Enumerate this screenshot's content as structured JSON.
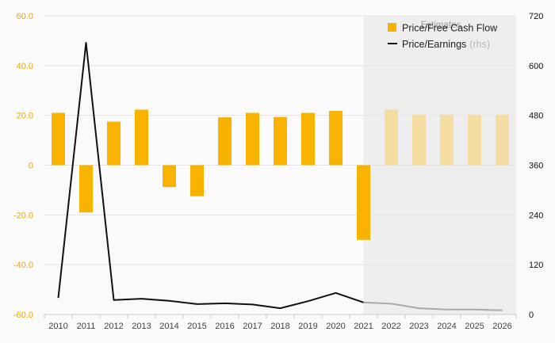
{
  "chart_data": {
    "type": "bar",
    "categories": [
      "2010",
      "2011",
      "2012",
      "2013",
      "2014",
      "2015",
      "2016",
      "2017",
      "2018",
      "2019",
      "2020",
      "2021",
      "2022",
      "2023",
      "2024",
      "2025",
      "2026"
    ],
    "series": [
      {
        "name": "Price/Free Cash Flow",
        "axis": "left",
        "type": "bar",
        "values": [
          21.0,
          -19.0,
          17.5,
          22.3,
          -8.8,
          -12.5,
          19.2,
          21.0,
          19.4,
          21.0,
          21.8,
          -30.0,
          22.3,
          20.3,
          20.3,
          20.3,
          20.3
        ],
        "estimated": [
          false,
          false,
          false,
          false,
          false,
          false,
          false,
          false,
          false,
          false,
          false,
          false,
          true,
          true,
          true,
          true,
          true
        ]
      },
      {
        "name": "Price/Earnings",
        "axis": "right",
        "type": "line",
        "values": [
          40,
          655,
          35,
          38,
          33,
          25,
          27,
          24,
          15,
          32,
          52,
          29,
          26,
          15,
          12,
          12,
          10
        ],
        "estimated": [
          false,
          false,
          false,
          false,
          false,
          false,
          false,
          false,
          false,
          false,
          false,
          false,
          true,
          true,
          true,
          true,
          true
        ]
      }
    ],
    "left_axis": {
      "ylim": [
        -60,
        60
      ],
      "ticks": [
        "60.0",
        "40.0",
        "20.0",
        "0",
        "-20.0",
        "-40.0",
        "-60.0"
      ]
    },
    "right_axis": {
      "ylim": [
        0,
        720
      ],
      "ticks": [
        "720",
        "600",
        "480",
        "360",
        "240",
        "120",
        "0"
      ]
    },
    "estimates_label": "Estimates",
    "estimates_start_index": 11.5,
    "legend": {
      "position": "top-right",
      "bar_label": "Price/Free Cash Flow",
      "line_label": "Price/Earnings",
      "line_suffix": "(rhs)"
    },
    "colors": {
      "bar": "#f9b200",
      "bar_estimate": "#f5dca0",
      "line": "#111111",
      "line_estimate": "#aaaaaa",
      "estimate_band": "#eeeeee",
      "left_ticks": "#f0a800",
      "right_ticks": "#111111"
    },
    "grid": true
  }
}
